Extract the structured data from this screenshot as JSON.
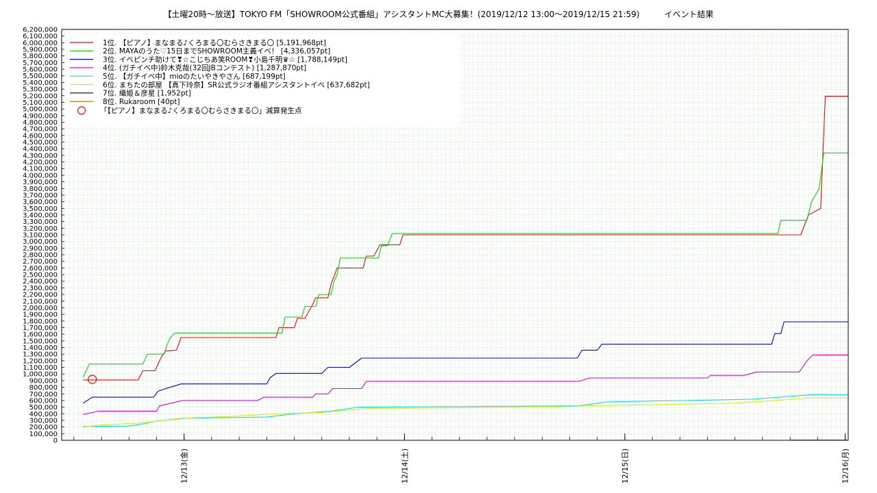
{
  "chart_data": {
    "type": "line",
    "title": "【土曜20時〜放送】TOKYO FM「SHOWROOM公式番組」アシスタントMC大募集！(2019/12/12 13:00〜2019/12/15 21:59)　　　イベント結果",
    "xlabel": "",
    "ylabel": "",
    "ylim": [
      0,
      6200000
    ],
    "y_tick_step": 100000,
    "x_domain": [
      "2019/12/12 10:40",
      "2019/12/16 00:20"
    ],
    "x_ticks": [
      {
        "t": "2019/12/13 00:00",
        "label": "12/13(金)"
      },
      {
        "t": "2019/12/14 00:00",
        "label": "12/14(土)"
      },
      {
        "t": "2019/12/15 00:00",
        "label": "12/15(日)"
      },
      {
        "t": "2019/12/16 00:00",
        "label": "12/16(月)"
      }
    ],
    "grid": true,
    "legend_position": "top-left",
    "series": [
      {
        "name": "1位. 【ピアノ】まなまる♪くろまる〇むらさきまる〇 [5,191,968pt]",
        "color": "#ff0000",
        "points": [
          [
            "2019/12/12 13:00",
            910000
          ],
          [
            "2019/12/12 19:00",
            910000
          ],
          [
            "2019/12/12 19:30",
            1050000
          ],
          [
            "2019/12/12 20:50",
            1050000
          ],
          [
            "2019/12/12 21:30",
            1250000
          ],
          [
            "2019/12/12 22:00",
            1350000
          ],
          [
            "2019/12/12 23:10",
            1360000
          ],
          [
            "2019/12/12 23:40",
            1550000
          ],
          [
            "2019/12/13 10:00",
            1550000
          ],
          [
            "2019/12/13 10:20",
            1700000
          ],
          [
            "2019/12/13 12:00",
            1700000
          ],
          [
            "2019/12/13 12:20",
            1840000
          ],
          [
            "2019/12/13 13:10",
            1840000
          ],
          [
            "2019/12/13 14:00",
            2050000
          ],
          [
            "2019/12/13 14:20",
            2150000
          ],
          [
            "2019/12/13 15:40",
            2150000
          ],
          [
            "2019/12/13 16:00",
            2350000
          ],
          [
            "2019/12/13 16:40",
            2600000
          ],
          [
            "2019/12/13 19:30",
            2600000
          ],
          [
            "2019/12/13 19:50",
            2780000
          ],
          [
            "2019/12/13 20:40",
            2780000
          ],
          [
            "2019/12/13 21:20",
            2950000
          ],
          [
            "2019/12/13 23:30",
            2950000
          ],
          [
            "2019/12/13 23:50",
            3100000
          ],
          [
            "2019/12/15 19:10",
            3100000
          ],
          [
            "2019/12/15 20:00",
            3400000
          ],
          [
            "2019/12/15 21:20",
            3500000
          ],
          [
            "2019/12/15 21:50",
            5191968
          ],
          [
            "2019/12/16 00:20",
            5191968
          ]
        ]
      },
      {
        "name": "2位. MAYAのうた♡15日までSHOWROOM主義イベ！ [4,336,057pt]",
        "color": "#00dd00",
        "points": [
          [
            "2019/12/12 13:00",
            950000
          ],
          [
            "2019/12/12 13:40",
            1150000
          ],
          [
            "2019/12/12 19:30",
            1150000
          ],
          [
            "2019/12/12 20:00",
            1300000
          ],
          [
            "2019/12/12 21:50",
            1300000
          ],
          [
            "2019/12/12 22:10",
            1450000
          ],
          [
            "2019/12/12 22:30",
            1550000
          ],
          [
            "2019/12/12 23:00",
            1620000
          ],
          [
            "2019/12/13 10:00",
            1620000
          ],
          [
            "2019/12/13 10:40",
            1620000
          ],
          [
            "2019/12/13 11:00",
            1860000
          ],
          [
            "2019/12/13 12:50",
            1860000
          ],
          [
            "2019/12/13 13:10",
            2020000
          ],
          [
            "2019/12/13 14:20",
            2020000
          ],
          [
            "2019/12/13 14:40",
            2200000
          ],
          [
            "2019/12/13 16:00",
            2200000
          ],
          [
            "2019/12/13 16:20",
            2400000
          ],
          [
            "2019/12/13 16:40",
            2500000
          ],
          [
            "2019/12/13 17:00",
            2750000
          ],
          [
            "2019/12/13 21:10",
            2750000
          ],
          [
            "2019/12/13 21:30",
            2940000
          ],
          [
            "2019/12/13 22:10",
            2940000
          ],
          [
            "2019/12/13 22:40",
            3120000
          ],
          [
            "2019/12/15 16:40",
            3120000
          ],
          [
            "2019/12/15 17:00",
            3320000
          ],
          [
            "2019/12/15 19:50",
            3320000
          ],
          [
            "2019/12/15 20:20",
            3600000
          ],
          [
            "2019/12/15 21:10",
            3800000
          ],
          [
            "2019/12/15 21:40",
            4336057
          ],
          [
            "2019/12/16 00:20",
            4336057
          ]
        ]
      },
      {
        "name": "3位. イベピンチ助けて❣☆こじちあ笑ROOM❣小島千明♛☆ [1,788,149pt]",
        "color": "#0000cc",
        "points": [
          [
            "2019/12/12 13:00",
            560000
          ],
          [
            "2019/12/12 14:00",
            650000
          ],
          [
            "2019/12/12 20:40",
            650000
          ],
          [
            "2019/12/12 21:10",
            740000
          ],
          [
            "2019/12/12 22:00",
            780000
          ],
          [
            "2019/12/12 23:40",
            850000
          ],
          [
            "2019/12/13 09:00",
            850000
          ],
          [
            "2019/12/13 09:20",
            940000
          ],
          [
            "2019/12/13 10:00",
            1010000
          ],
          [
            "2019/12/13 15:00",
            1010000
          ],
          [
            "2019/12/13 15:40",
            1100000
          ],
          [
            "2019/12/13 18:00",
            1100000
          ],
          [
            "2019/12/13 19:20",
            1240000
          ],
          [
            "2019/12/14 18:50",
            1240000
          ],
          [
            "2019/12/14 19:20",
            1360000
          ],
          [
            "2019/12/14 21:00",
            1360000
          ],
          [
            "2019/12/14 21:30",
            1450000
          ],
          [
            "2019/12/15 16:00",
            1450000
          ],
          [
            "2019/12/15 16:20",
            1610000
          ],
          [
            "2019/12/15 17:00",
            1610000
          ],
          [
            "2019/12/15 17:20",
            1788149
          ],
          [
            "2019/12/16 00:20",
            1788149
          ]
        ]
      },
      {
        "name": "4位. (ガチイベ中)鈴木克哉(32回JBコンテスト) [1,287,870pt]",
        "color": "#dd00dd",
        "points": [
          [
            "2019/12/12 13:00",
            390000
          ],
          [
            "2019/12/12 14:40",
            440000
          ],
          [
            "2019/12/12 21:00",
            440000
          ],
          [
            "2019/12/12 21:20",
            520000
          ],
          [
            "2019/12/12 23:50",
            600000
          ],
          [
            "2019/12/13 08:00",
            600000
          ],
          [
            "2019/12/13 08:40",
            650000
          ],
          [
            "2019/12/13 14:00",
            650000
          ],
          [
            "2019/12/13 14:20",
            700000
          ],
          [
            "2019/12/13 15:40",
            700000
          ],
          [
            "2019/12/13 16:10",
            780000
          ],
          [
            "2019/12/13 19:20",
            780000
          ],
          [
            "2019/12/13 19:50",
            890000
          ],
          [
            "2019/12/14 19:00",
            890000
          ],
          [
            "2019/12/14 20:10",
            940000
          ],
          [
            "2019/12/15 09:00",
            940000
          ],
          [
            "2019/12/15 09:20",
            980000
          ],
          [
            "2019/12/15 13:00",
            980000
          ],
          [
            "2019/12/15 14:20",
            1030000
          ],
          [
            "2019/12/15 19:00",
            1030000
          ],
          [
            "2019/12/15 19:50",
            1200000
          ],
          [
            "2019/12/15 20:30",
            1287870
          ],
          [
            "2019/12/16 00:20",
            1287870
          ]
        ]
      },
      {
        "name": "5位. 【ガチイベ中】mioのたいやきやさん [687,199pt]",
        "color": "#00e0e0",
        "points": [
          [
            "2019/12/12 13:00",
            210000
          ],
          [
            "2019/12/12 18:00",
            215000
          ],
          [
            "2019/12/12 19:40",
            250000
          ],
          [
            "2019/12/12 21:00",
            290000
          ],
          [
            "2019/12/12 23:50",
            330000
          ],
          [
            "2019/12/13 03:00",
            340000
          ],
          [
            "2019/12/13 09:00",
            350000
          ],
          [
            "2019/12/13 12:00",
            400000
          ],
          [
            "2019/12/13 16:00",
            440000
          ],
          [
            "2019/12/13 19:00",
            500000
          ],
          [
            "2019/12/14 19:00",
            520000
          ],
          [
            "2019/12/14 22:00",
            580000
          ],
          [
            "2019/12/15 14:00",
            620000
          ],
          [
            "2019/12/15 20:30",
            690000
          ],
          [
            "2019/12/16 00:20",
            687199
          ]
        ]
      },
      {
        "name": "6位. まちたの部屋 【真下玲奈】SR公式ラジオ番組アシスタントイベ [637,682pt]",
        "color": "#e8e800",
        "points": [
          [
            "2019/12/12 13:00",
            200000
          ],
          [
            "2019/12/12 15:00",
            230000
          ],
          [
            "2019/12/12 19:00",
            260000
          ],
          [
            "2019/12/12 22:00",
            300000
          ],
          [
            "2019/12/13 01:00",
            340000
          ],
          [
            "2019/12/13 05:00",
            360000
          ],
          [
            "2019/12/13 10:00",
            400000
          ],
          [
            "2019/12/13 15:00",
            420000
          ],
          [
            "2019/12/13 20:00",
            480000
          ],
          [
            "2019/12/14 16:00",
            500000
          ],
          [
            "2019/12/14 20:00",
            520000
          ],
          [
            "2019/12/15 12:00",
            560000
          ],
          [
            "2019/12/15 20:00",
            637682
          ],
          [
            "2019/12/16 00:20",
            637682
          ]
        ]
      },
      {
        "name": "7位. 織姫＆彦星 [1,952pt]",
        "color": "#000000",
        "points": [
          [
            "2019/12/15 18:00",
            1952
          ],
          [
            "2019/12/16 00:20",
            1952
          ]
        ]
      },
      {
        "name": "8位. Rukaroom [40pt]",
        "color": "#e07000",
        "points": [
          [
            "2019/12/15 18:00",
            40
          ],
          [
            "2019/12/16 00:20",
            40
          ]
        ]
      }
    ],
    "annotations": [
      {
        "label": "「【ピアノ】まなまる♪くろまる〇むらさきまる〇」減算発生点",
        "color": "#ff0000",
        "marker": "circle",
        "t": "2019/12/12 14:00",
        "y": 920000
      }
    ]
  }
}
